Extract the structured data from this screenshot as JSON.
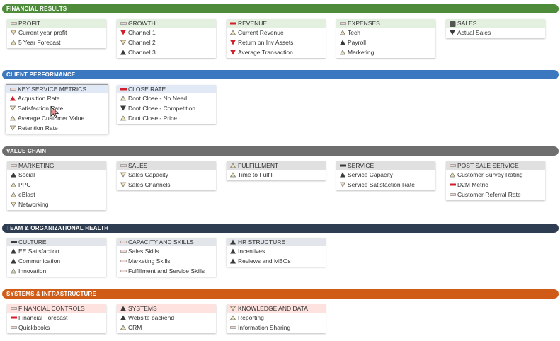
{
  "colors": {
    "financial": "#4e8b3a",
    "client": "#3c78c0",
    "value_chain": "#6e6e6e",
    "team": "#2f3d52",
    "systems": "#cf5b17",
    "green_head": "#e3efdf",
    "blue_head": "#e1e8f6",
    "gray_head": "#e0e0e0",
    "navy_head": "#e2e5ea",
    "orange_head": "#fde2df"
  },
  "icon_legend": {
    "neutral": "neutral-dash-icon (outlined light bar)",
    "dark": "dark-dash-icon",
    "red": "red-dash-icon",
    "up_dark": "triangle-up-dark-icon",
    "up_red": "triangle-up-red-icon",
    "up_light": "triangle-up-light-icon",
    "down_dark": "triangle-down-dark-icon",
    "down_red": "triangle-down-red-icon",
    "down_light": "triangle-down-light-icon",
    "square": "square-dark-icon"
  },
  "sections": [
    {
      "title": "FINANCIAL RESULTS",
      "cards": [
        {
          "header": "PROFIT",
          "icon": "neutral",
          "items": [
            {
              "label": "Current year profit",
              "icon": "down_light"
            },
            {
              "label": "5 Year Forecast",
              "icon": "up_light"
            }
          ]
        },
        {
          "header": "GROWTH",
          "icon": "neutral",
          "items": [
            {
              "label": "Channel 1",
              "icon": "down_red"
            },
            {
              "label": "Channel 2",
              "icon": "down_light"
            },
            {
              "label": "Channel 3",
              "icon": "up_dark"
            }
          ]
        },
        {
          "header": "REVENUE",
          "icon": "red",
          "items": [
            {
              "label": "Current Revenue",
              "icon": "up_light"
            },
            {
              "label": "Return on Inv Assets",
              "icon": "down_red"
            },
            {
              "label": "Average Transaction",
              "icon": "down_red"
            }
          ]
        },
        {
          "header": "EXPENSES",
          "icon": "neutral",
          "items": [
            {
              "label": "Tech",
              "icon": "up_light"
            },
            {
              "label": "Payroll",
              "icon": "up_dark"
            },
            {
              "label": "Marketing",
              "icon": "up_light"
            }
          ]
        },
        {
          "header": "SALES",
          "icon": "square",
          "items": [
            {
              "label": "Actual Sales",
              "icon": "down_dark"
            }
          ]
        }
      ]
    },
    {
      "title": "CLIENT PERFORMANCE",
      "cards": [
        {
          "header": "KEY SERVICE METRICS",
          "icon": "neutral",
          "items": [
            {
              "label": "Acqusition Rate",
              "icon": "up_red"
            },
            {
              "label": "Satisfaction Rate",
              "icon": "down_light"
            },
            {
              "label": "Average Customer Value",
              "icon": "up_light"
            },
            {
              "label": "Retention Rate",
              "icon": "down_light"
            }
          ]
        },
        {
          "header": "CLOSE RATE",
          "icon": "red",
          "items": [
            {
              "label": "Dont Close - No Need",
              "icon": "up_light"
            },
            {
              "label": "Dont Close - Competition",
              "icon": "down_dark"
            },
            {
              "label": "Dont Close - Price",
              "icon": "up_light"
            }
          ]
        }
      ]
    },
    {
      "title": "VALUE CHAIN",
      "cards": [
        {
          "header": "MARKETING",
          "icon": "neutral",
          "items": [
            {
              "label": "Social",
              "icon": "up_dark"
            },
            {
              "label": "PPC",
              "icon": "up_light"
            },
            {
              "label": "eBlast",
              "icon": "up_light"
            },
            {
              "label": "Networking",
              "icon": "down_light"
            }
          ]
        },
        {
          "header": "SALES",
          "icon": "neutral",
          "items": [
            {
              "label": "Sales Capacity",
              "icon": "down_light"
            },
            {
              "label": "Sales Channels",
              "icon": "down_light"
            }
          ]
        },
        {
          "header": "FULFILLMENT",
          "icon": "up_light",
          "items": [
            {
              "label": "Time to Fulfill",
              "icon": "up_light"
            }
          ]
        },
        {
          "header": "SERVICE",
          "icon": "dark",
          "items": [
            {
              "label": "Service Capacity",
              "icon": "up_dark"
            },
            {
              "label": "Service Satisfaction Rate",
              "icon": "down_light"
            }
          ]
        },
        {
          "header": "POST SALE SERVICE",
          "icon": "neutral",
          "items": [
            {
              "label": "Customer Survey Rating",
              "icon": "up_light"
            },
            {
              "label": "D2M Metric",
              "icon": "red"
            },
            {
              "label": "Customer Referral Rate",
              "icon": "neutral"
            }
          ]
        }
      ]
    },
    {
      "title": "TEAM & ORGANIZATIONAL HEALTH",
      "cards": [
        {
          "header": "CULTURE",
          "icon": "dark",
          "items": [
            {
              "label": "EE Satisfaction",
              "icon": "up_dark"
            },
            {
              "label": "Communication",
              "icon": "up_dark"
            },
            {
              "label": "Innovation",
              "icon": "up_light"
            }
          ]
        },
        {
          "header": "CAPACITY AND SKILLS",
          "icon": "neutral",
          "items": [
            {
              "label": "Sales Skills",
              "icon": "neutral"
            },
            {
              "label": "Marketing Skills",
              "icon": "neutral"
            },
            {
              "label": "Fulfillment and Service Skills",
              "icon": "neutral"
            }
          ]
        },
        {
          "header": "HR STRUCTURE",
          "icon": "up_dark",
          "items": [
            {
              "label": "Incentives",
              "icon": "up_dark"
            },
            {
              "label": "Reviews and MBOs",
              "icon": "up_dark"
            }
          ]
        }
      ]
    },
    {
      "title": "SYSTEMS & INFRASTRUCTURE",
      "cards": [
        {
          "header": "FINANCIAL CONTROLS",
          "icon": "neutral",
          "items": [
            {
              "label": "Financial Forecast",
              "icon": "red"
            },
            {
              "label": "Quickbooks",
              "icon": "neutral"
            }
          ]
        },
        {
          "header": "SYSTEMS",
          "icon": "up_dark",
          "items": [
            {
              "label": "Website backend",
              "icon": "up_dark"
            },
            {
              "label": "CRM",
              "icon": "up_light"
            }
          ]
        },
        {
          "header": "KNOWLEDGE AND DATA",
          "icon": "down_light",
          "items": [
            {
              "label": "Reporting",
              "icon": "up_light"
            },
            {
              "label": "Information Sharing",
              "icon": "neutral"
            }
          ]
        }
      ]
    }
  ]
}
